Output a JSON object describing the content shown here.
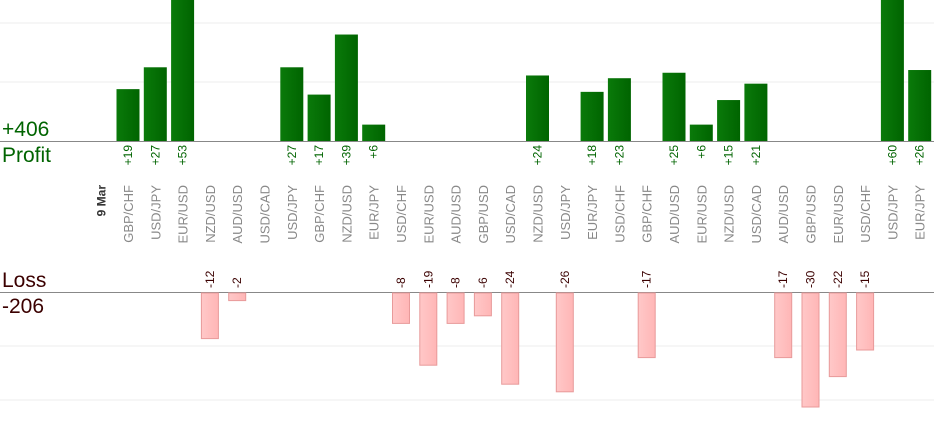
{
  "summary": {
    "profit_total": "+406",
    "profit_label": "Profit",
    "loss_label": "Loss",
    "loss_total": "-206"
  },
  "colors": {
    "profit_bar": "#006400",
    "profit_bar_light": "#0a7a0a",
    "profit_text": "#006400",
    "loss_bar": "#ffb6b6",
    "loss_bar_stroke": "#e89a9a",
    "loss_text": "#3b0000",
    "category_text": "#888888",
    "date_text": "#333333",
    "grid": "#eeeeee",
    "axis": "#888888"
  },
  "chart_data": {
    "type": "bar",
    "date_label": "9 Mar",
    "categories": [
      "GBP/CHF",
      "USD/JPY",
      "EUR/USD",
      "NZD/USD",
      "AUD/USD",
      "USD/CAD",
      "USD/JPY",
      "GBP/CHF",
      "NZD/USD",
      "EUR/JPY",
      "USD/CHF",
      "EUR/USD",
      "AUD/USD",
      "GBP/USD",
      "USD/CAD",
      "NZD/USD",
      "USD/JPY",
      "EUR/JPY",
      "USD/CHF",
      "GBP/CHF",
      "AUD/USD",
      "EUR/USD",
      "NZD/USD",
      "USD/CAD",
      "AUD/USD",
      "GBP/USD",
      "EUR/USD",
      "USD/CHF",
      "USD/JPY",
      "EUR/JPY"
    ],
    "series": [
      {
        "name": "Profit",
        "values": [
          19,
          27,
          53,
          null,
          null,
          null,
          27,
          17,
          39,
          6,
          null,
          null,
          null,
          null,
          null,
          24,
          null,
          18,
          23,
          null,
          25,
          6,
          15,
          21,
          null,
          null,
          null,
          null,
          60,
          26
        ],
        "labels": [
          "+19",
          "+27",
          "+53",
          "",
          "",
          "",
          "+27",
          "+17",
          "+39",
          "+6",
          "",
          "",
          "",
          "",
          "",
          "+24",
          "",
          "+18",
          "+23",
          "",
          "+25",
          "+6",
          "+15",
          "+21",
          "",
          "",
          "",
          "",
          "+60",
          "+26"
        ]
      },
      {
        "name": "Loss",
        "values": [
          null,
          null,
          null,
          -12,
          -2,
          null,
          null,
          null,
          null,
          null,
          -8,
          -19,
          -8,
          -6,
          -24,
          null,
          -26,
          null,
          null,
          -17,
          null,
          null,
          null,
          null,
          -17,
          -30,
          -22,
          -15,
          null,
          null
        ],
        "labels": [
          "",
          "",
          "",
          "-12",
          "-2",
          "",
          "",
          "",
          "",
          "",
          "-8",
          "-19",
          "-8",
          "-6",
          "-24",
          "",
          "-26",
          "",
          "",
          "-17",
          "",
          "",
          "",
          "",
          "-17",
          "-30",
          "-22",
          "-15",
          "",
          ""
        ]
      }
    ],
    "grid": true
  }
}
